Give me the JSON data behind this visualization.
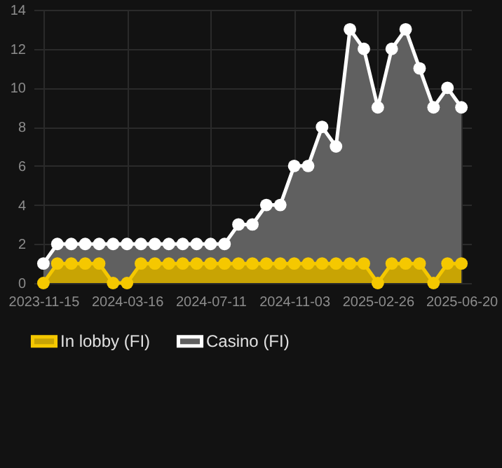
{
  "chart_data": {
    "type": "area",
    "categories": [
      "2023-11-15",
      null,
      null,
      null,
      null,
      null,
      "2024-03-16",
      null,
      null,
      null,
      null,
      null,
      "2024-07-11",
      null,
      null,
      null,
      null,
      null,
      "2024-11-03",
      null,
      null,
      null,
      null,
      null,
      "2025-02-26",
      null,
      null,
      null,
      null,
      null,
      "2025-06-20"
    ],
    "series": [
      {
        "name": "In lobby (FI)",
        "color": "#f5c800",
        "values": [
          0,
          1,
          1,
          1,
          1,
          0,
          0,
          1,
          1,
          1,
          1,
          1,
          1,
          1,
          1,
          1,
          1,
          1,
          1,
          1,
          1,
          1,
          1,
          1,
          0,
          1,
          1,
          1,
          0,
          1,
          1
        ]
      },
      {
        "name": "Casino (FI)",
        "color": "#ffffff",
        "values": [
          1,
          2,
          2,
          2,
          2,
          2,
          2,
          2,
          2,
          2,
          2,
          2,
          2,
          2,
          3,
          3,
          4,
          4,
          6,
          6,
          8,
          7,
          13,
          12,
          9,
          12,
          13,
          11,
          9,
          10,
          9
        ]
      }
    ],
    "ylim": [
      0,
      14
    ],
    "yticks": [
      0,
      2,
      4,
      6,
      8,
      10,
      12,
      14
    ],
    "grid": true,
    "legend": "bottom",
    "marker": "circle",
    "line_style": "solid"
  }
}
